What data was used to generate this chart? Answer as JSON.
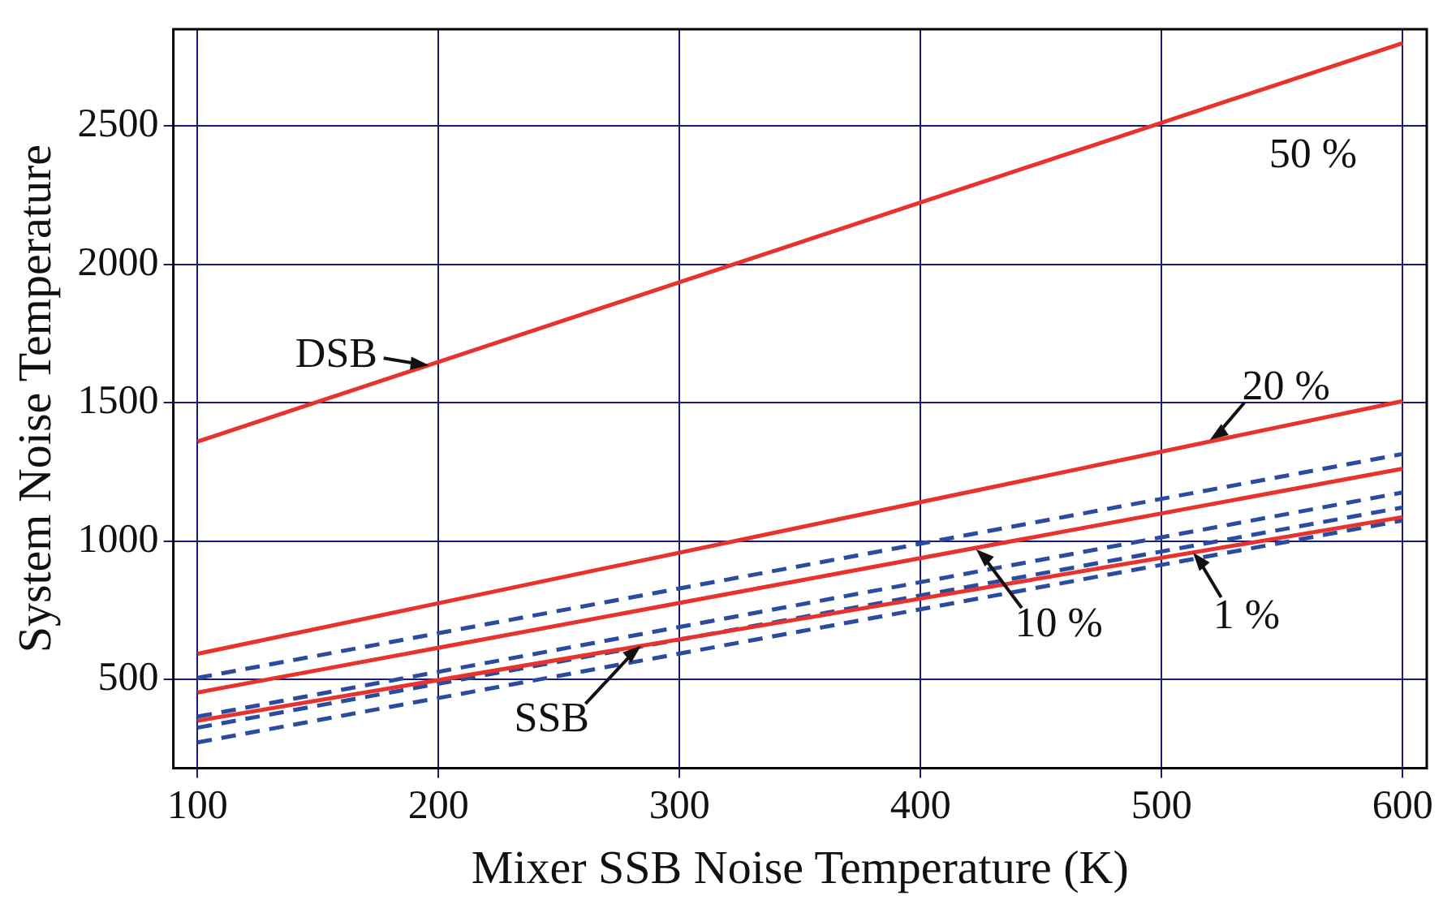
{
  "chart_data": {
    "type": "line",
    "xlabel": "Mixer SSB Noise Temperature (K)",
    "ylabel": "System Noise Temperature",
    "xlim": [
      90,
      610
    ],
    "ylim": [
      180,
      2850
    ],
    "xticks": [
      100,
      200,
      300,
      400,
      500,
      600
    ],
    "yticks": [
      500,
      1000,
      1500,
      2000,
      2500
    ],
    "grid": true,
    "legend": false,
    "marker": "none",
    "x": [
      100,
      350,
      600
    ],
    "series": [
      {
        "color": "#e8322d",
        "values": [
          1360,
          2080,
          2800
        ],
        "line_style": "solid"
      },
      {
        "color": "#e8322d",
        "values": [
          593,
          1050,
          1506
        ],
        "line_style": "solid"
      },
      {
        "color": "#2a4ba0",
        "values": [
          506,
          910,
          1315
        ],
        "line_style": "dashed"
      },
      {
        "color": "#e8322d",
        "values": [
          453,
          858,
          1262
        ],
        "line_style": "solid"
      },
      {
        "color": "#2a4ba0",
        "values": [
          366,
          771,
          1176
        ],
        "line_style": "dashed"
      },
      {
        "color": "#e8322d",
        "values": [
          351,
          719,
          1087
        ],
        "line_style": "solid"
      },
      {
        "color": "#2a4ba0",
        "values": [
          326,
          724,
          1122
        ],
        "line_style": "dashed"
      },
      {
        "color": "#2a4ba0",
        "values": [
          273,
          674,
          1075
        ],
        "line_style": "dashed"
      }
    ],
    "annotations": [
      {
        "text": "DSB",
        "x": 196,
        "y": 1636
      },
      "50 %",
      {
        "text": "20 %",
        "x": 520,
        "y": 1366
      },
      {
        "text": "10 %",
        "x": 423,
        "y": 971
      },
      {
        "text": "1 %",
        "x": 513,
        "y": 959
      },
      {
        "text": "SSB",
        "x": 284,
        "y": 622
      }
    ]
  }
}
